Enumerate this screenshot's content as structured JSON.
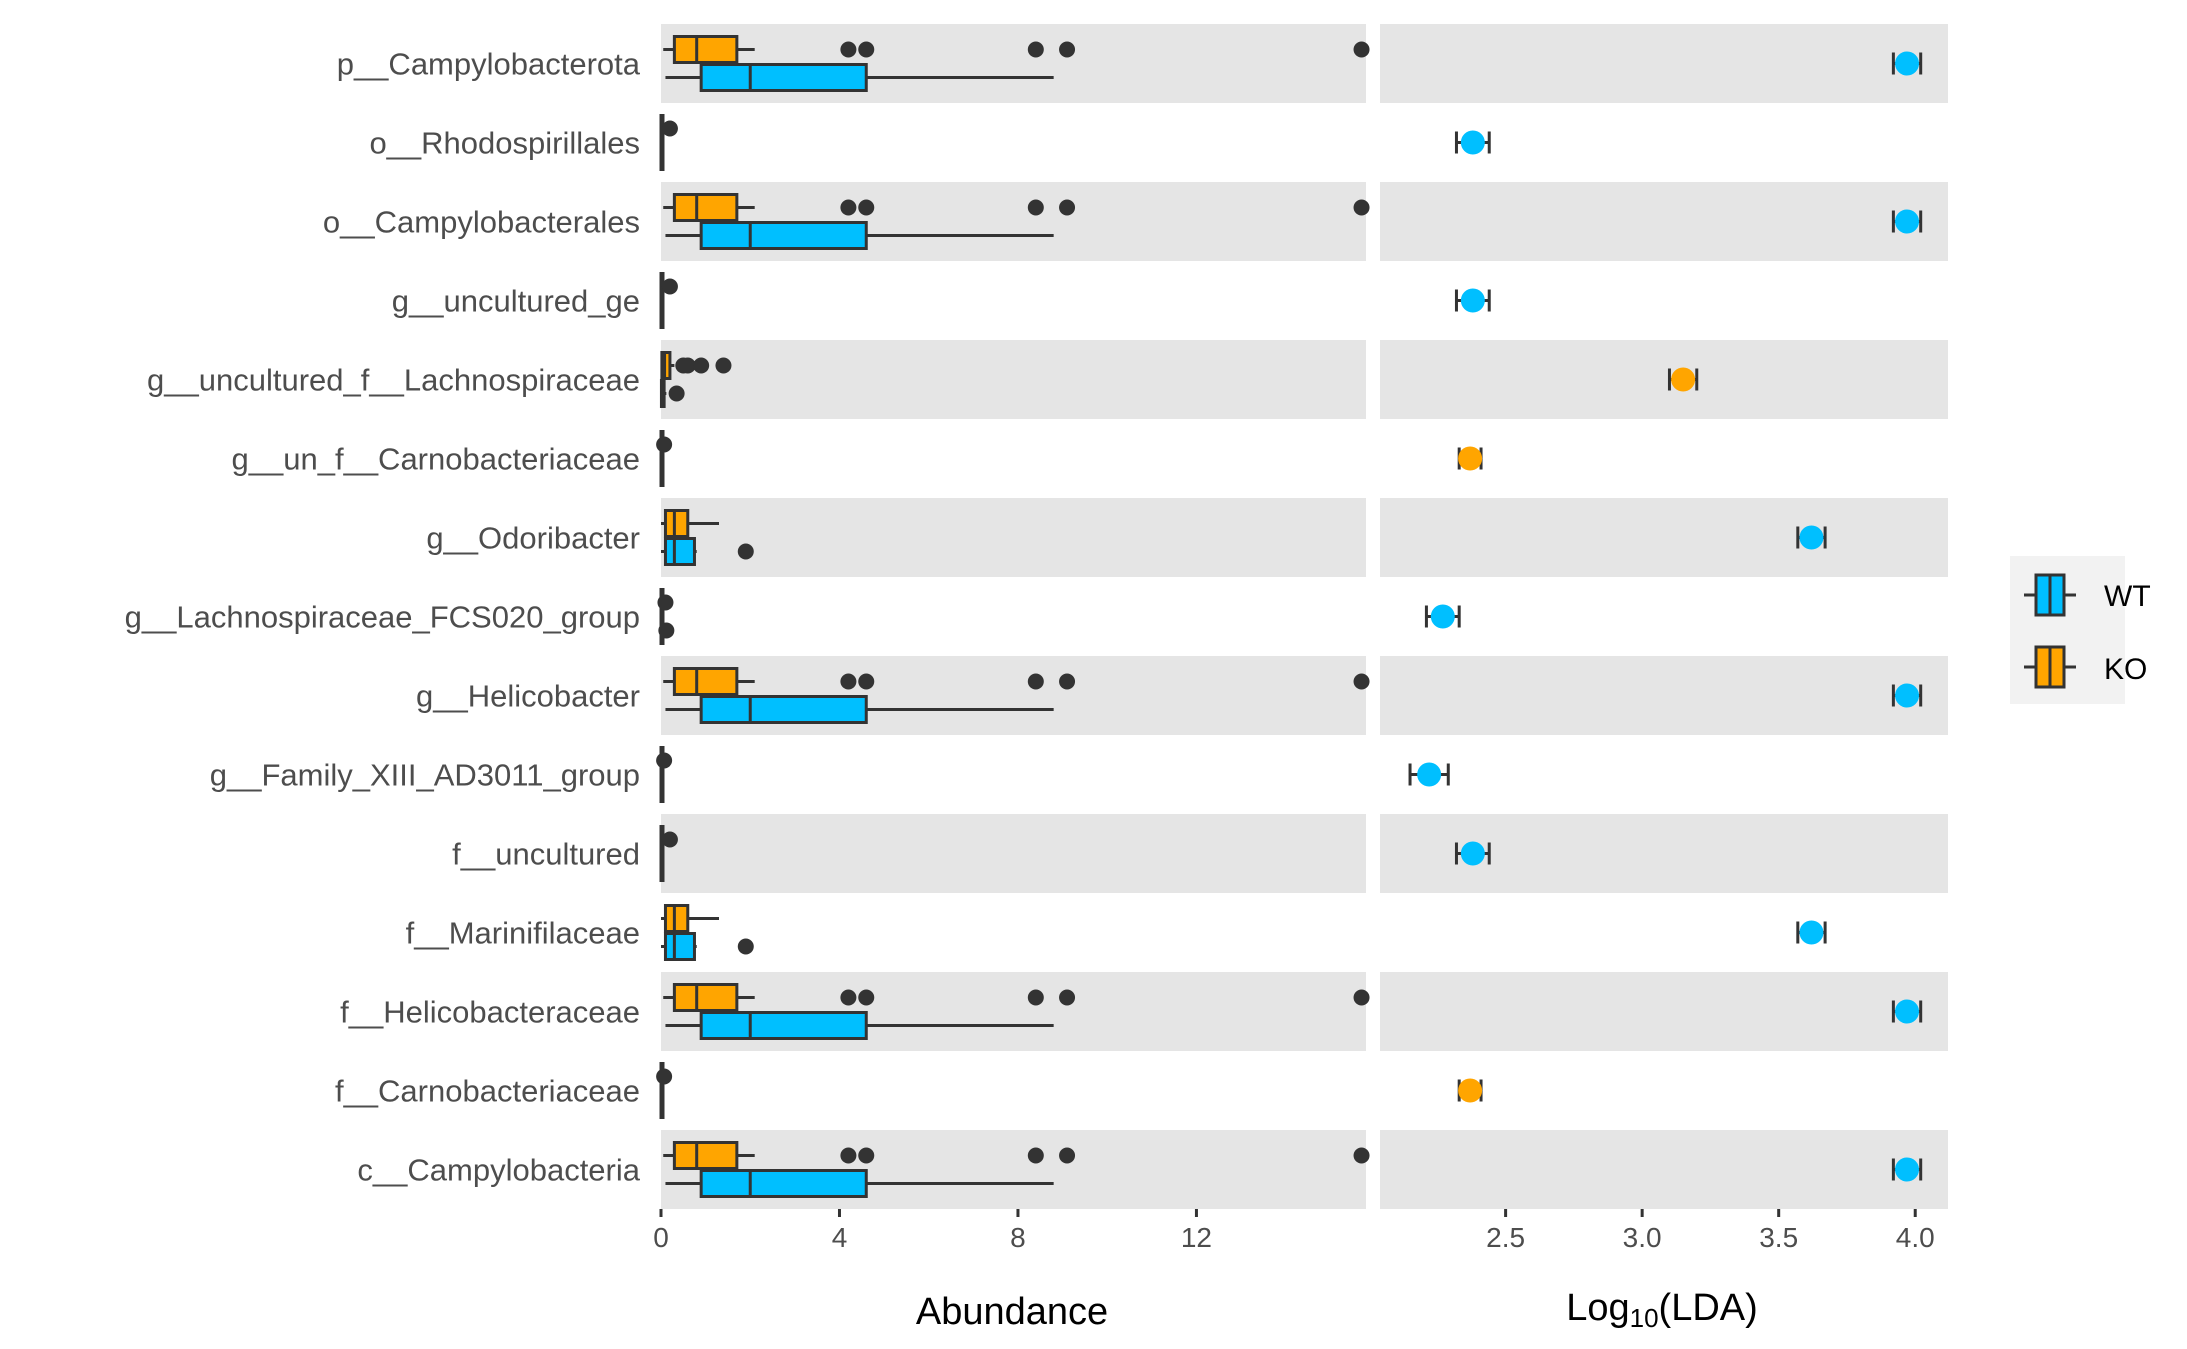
{
  "chart_data": [
    {
      "type": "box",
      "xlabel": "Abundance",
      "xticks": [
        0,
        4,
        8,
        12
      ],
      "xlim": [
        0,
        15.8
      ],
      "categories": [
        "p__Campylobacterota",
        "o__Rhodospirillales",
        "o__Campylobacterales",
        "g__uncultured_ge",
        "g__uncultured_f__Lachnospiraceae",
        "g__un_f__Carnobacteriaceae",
        "g__Odoribacter",
        "g__Lachnospiraceae_FCS020_group",
        "g__Helicobacter",
        "g__Family_XIII_AD3011_group",
        "f__uncultured",
        "f__Marinifilaceae",
        "f__Helicobacteraceae",
        "f__Carnobacteriaceae",
        "c__Campylobacteria"
      ],
      "series": [
        {
          "name": "KO",
          "color": "#FFA500",
          "boxes": [
            {
              "min": 0.05,
              "q1": 0.3,
              "median": 0.8,
              "q3": 1.7,
              "max": 2.1,
              "outliers": [
                4.2,
                4.6,
                8.4,
                9.1,
                15.7
              ]
            },
            {
              "min": 0.0,
              "q1": 0.0,
              "median": 0.0,
              "q3": 0.02,
              "max": 0.05,
              "outliers": [
                0.2
              ]
            },
            {
              "min": 0.05,
              "q1": 0.3,
              "median": 0.8,
              "q3": 1.7,
              "max": 2.1,
              "outliers": [
                4.2,
                4.6,
                8.4,
                9.1,
                15.7
              ]
            },
            {
              "min": 0.0,
              "q1": 0.0,
              "median": 0.0,
              "q3": 0.02,
              "max": 0.05,
              "outliers": [
                0.2
              ]
            },
            {
              "min": 0.0,
              "q1": 0.02,
              "median": 0.08,
              "q3": 0.2,
              "max": 0.3,
              "outliers": [
                0.5,
                0.6,
                0.9,
                1.4
              ]
            },
            {
              "min": 0.0,
              "q1": 0.0,
              "median": 0.0,
              "q3": 0.01,
              "max": 0.03,
              "outliers": [
                0.07
              ]
            },
            {
              "min": 0.0,
              "q1": 0.1,
              "median": 0.3,
              "q3": 0.6,
              "max": 1.3,
              "outliers": []
            },
            {
              "min": 0.0,
              "q1": 0.0,
              "median": 0.0,
              "q3": 0.01,
              "max": 0.03,
              "outliers": [
                0.1
              ]
            },
            {
              "min": 0.05,
              "q1": 0.3,
              "median": 0.8,
              "q3": 1.7,
              "max": 2.1,
              "outliers": [
                4.2,
                4.6,
                8.4,
                9.1,
                15.7
              ]
            },
            {
              "min": 0.0,
              "q1": 0.0,
              "median": 0.0,
              "q3": 0.01,
              "max": 0.03,
              "outliers": [
                0.07
              ]
            },
            {
              "min": 0.0,
              "q1": 0.0,
              "median": 0.0,
              "q3": 0.02,
              "max": 0.05,
              "outliers": [
                0.2
              ]
            },
            {
              "min": 0.0,
              "q1": 0.1,
              "median": 0.3,
              "q3": 0.6,
              "max": 1.3,
              "outliers": []
            },
            {
              "min": 0.05,
              "q1": 0.3,
              "median": 0.8,
              "q3": 1.7,
              "max": 2.1,
              "outliers": [
                4.2,
                4.6,
                8.4,
                9.1,
                15.7
              ]
            },
            {
              "min": 0.0,
              "q1": 0.0,
              "median": 0.0,
              "q3": 0.01,
              "max": 0.03,
              "outliers": [
                0.07
              ]
            },
            {
              "min": 0.05,
              "q1": 0.3,
              "median": 0.8,
              "q3": 1.7,
              "max": 2.1,
              "outliers": [
                4.2,
                4.6,
                8.4,
                9.1,
                15.7
              ]
            }
          ]
        },
        {
          "name": "WT",
          "color": "#00BFFF",
          "boxes": [
            {
              "min": 0.1,
              "q1": 0.9,
              "median": 2.0,
              "q3": 4.6,
              "max": 8.8,
              "outliers": []
            },
            {
              "min": 0.0,
              "q1": 0.0,
              "median": 0.0,
              "q3": 0.02,
              "max": 0.05,
              "outliers": []
            },
            {
              "min": 0.1,
              "q1": 0.9,
              "median": 2.0,
              "q3": 4.6,
              "max": 8.8,
              "outliers": []
            },
            {
              "min": 0.0,
              "q1": 0.0,
              "median": 0.0,
              "q3": 0.02,
              "max": 0.05,
              "outliers": []
            },
            {
              "min": 0.0,
              "q1": 0.01,
              "median": 0.03,
              "q3": 0.07,
              "max": 0.12,
              "outliers": [
                0.35
              ]
            },
            {
              "min": 0.0,
              "q1": 0.0,
              "median": 0.0,
              "q3": 0.01,
              "max": 0.02,
              "outliers": []
            },
            {
              "min": 0.0,
              "q1": 0.1,
              "median": 0.3,
              "q3": 0.75,
              "max": 0.8,
              "outliers": [
                1.9
              ]
            },
            {
              "min": 0.0,
              "q1": 0.0,
              "median": 0.0,
              "q3": 0.01,
              "max": 0.03,
              "outliers": [
                0.12
              ]
            },
            {
              "min": 0.1,
              "q1": 0.9,
              "median": 2.0,
              "q3": 4.6,
              "max": 8.8,
              "outliers": []
            },
            {
              "min": 0.0,
              "q1": 0.0,
              "median": 0.0,
              "q3": 0.01,
              "max": 0.02,
              "outliers": []
            },
            {
              "min": 0.0,
              "q1": 0.0,
              "median": 0.0,
              "q3": 0.02,
              "max": 0.05,
              "outliers": []
            },
            {
              "min": 0.0,
              "q1": 0.1,
              "median": 0.3,
              "q3": 0.75,
              "max": 0.8,
              "outliers": [
                1.9
              ]
            },
            {
              "min": 0.1,
              "q1": 0.9,
              "median": 2.0,
              "q3": 4.6,
              "max": 8.8,
              "outliers": []
            },
            {
              "min": 0.0,
              "q1": 0.0,
              "median": 0.0,
              "q3": 0.01,
              "max": 0.02,
              "outliers": []
            },
            {
              "min": 0.1,
              "q1": 0.9,
              "median": 2.0,
              "q3": 4.6,
              "max": 8.8,
              "outliers": []
            }
          ]
        }
      ],
      "grid": false,
      "panel_background": "alternating grey bands"
    },
    {
      "type": "scatter",
      "xlabel_base": "Log",
      "xlabel_sub": "10",
      "xlabel_rest": "(LDA)",
      "xticks": [
        2.5,
        3.0,
        3.5,
        4.0
      ],
      "xtick_labels": [
        "2.5",
        "3.0",
        "3.5",
        "4.0"
      ],
      "xlim": [
        2.04,
        4.12
      ],
      "points": [
        {
          "value": 3.97,
          "err": 0.05,
          "group": "WT"
        },
        {
          "value": 2.38,
          "err": 0.06,
          "group": "WT"
        },
        {
          "value": 3.97,
          "err": 0.05,
          "group": "WT"
        },
        {
          "value": 2.38,
          "err": 0.06,
          "group": "WT"
        },
        {
          "value": 3.15,
          "err": 0.05,
          "group": "KO"
        },
        {
          "value": 2.37,
          "err": 0.04,
          "group": "KO"
        },
        {
          "value": 3.62,
          "err": 0.05,
          "group": "WT"
        },
        {
          "value": 2.27,
          "err": 0.06,
          "group": "WT"
        },
        {
          "value": 3.97,
          "err": 0.05,
          "group": "WT"
        },
        {
          "value": 2.22,
          "err": 0.07,
          "group": "WT"
        },
        {
          "value": 2.38,
          "err": 0.06,
          "group": "WT"
        },
        {
          "value": 3.62,
          "err": 0.05,
          "group": "WT"
        },
        {
          "value": 3.97,
          "err": 0.05,
          "group": "WT"
        },
        {
          "value": 2.37,
          "err": 0.04,
          "group": "KO"
        },
        {
          "value": 3.97,
          "err": 0.05,
          "group": "WT"
        }
      ],
      "group_colors": {
        "WT": "#00BFFF",
        "KO": "#FFA500"
      }
    }
  ],
  "legend": {
    "placement": "right",
    "items": [
      {
        "label": "WT",
        "color": "#00BFFF"
      },
      {
        "label": "KO",
        "color": "#FFA500"
      }
    ]
  },
  "colors": {
    "band": "#E5E5E5",
    "outline": "#333333",
    "tick_text": "#4d4d4d"
  }
}
